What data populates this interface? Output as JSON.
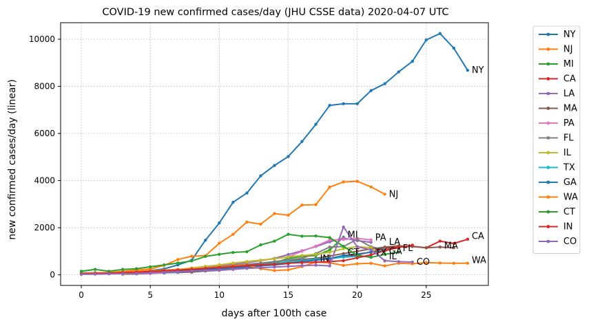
{
  "chart_data": {
    "type": "line",
    "title": "COVID-19 new confirmed cases/day (JHU CSSE data) 2020-04-07 UTC",
    "xlabel": "days after 100th case",
    "ylabel": "new confirmed cases/day (linear)",
    "xlim": [
      -1.5,
      29.5
    ],
    "ylim": [
      -450,
      10700
    ],
    "xticks": [
      0,
      5,
      10,
      15,
      20,
      25
    ],
    "yticks": [
      0,
      2000,
      4000,
      6000,
      8000,
      10000
    ],
    "grid": true,
    "legend_position": "outside-right",
    "series": [
      {
        "name": "NY",
        "color": "#1f77b4",
        "label": "NY",
        "x": [
          0,
          1,
          2,
          3,
          4,
          5,
          6,
          7,
          8,
          9,
          10,
          11,
          12,
          13,
          14,
          15,
          16,
          17,
          18,
          19,
          20,
          21,
          22,
          23,
          24,
          25,
          26,
          27,
          28
        ],
        "y": [
          80,
          90,
          60,
          110,
          130,
          180,
          250,
          420,
          620,
          1470,
          2200,
          3080,
          3470,
          4200,
          4640,
          5020,
          5660,
          6390,
          7190,
          7260,
          7260,
          7820,
          8110,
          8610,
          9060,
          9970,
          10240,
          9620,
          8680
        ]
      },
      {
        "name": "NJ",
        "color": "#ff7f0e",
        "label": "NJ",
        "x": [
          0,
          1,
          2,
          3,
          4,
          5,
          6,
          7,
          8,
          9,
          10,
          11,
          12,
          13,
          14,
          15,
          16,
          17,
          18,
          19,
          20,
          21,
          22
        ],
        "y": [
          60,
          80,
          100,
          150,
          200,
          250,
          400,
          650,
          790,
          810,
          1340,
          1720,
          2240,
          2150,
          2600,
          2530,
          2960,
          2980,
          3720,
          3940,
          3970,
          3730,
          3420
        ]
      },
      {
        "name": "MI",
        "color": "#2ca02c",
        "label": "MI",
        "x": [
          8,
          9,
          10,
          11,
          12,
          13,
          14,
          15,
          16,
          17,
          18,
          19
        ],
        "y": [
          110,
          170,
          230,
          300,
          350,
          420,
          510,
          700,
          780,
          820,
          1050,
          1600
        ]
      },
      {
        "name": "CA",
        "color": "#d62728",
        "label": "CA",
        "x": [
          0,
          1,
          2,
          3,
          4,
          5,
          6,
          7,
          8,
          9,
          10,
          11,
          12,
          13,
          14,
          15,
          16,
          17,
          18,
          19,
          20,
          21,
          22,
          23,
          24,
          25,
          26,
          27,
          28
        ],
        "y": [
          40,
          50,
          60,
          70,
          80,
          100,
          130,
          170,
          200,
          260,
          320,
          380,
          410,
          470,
          500,
          540,
          580,
          620,
          680,
          760,
          840,
          980,
          1130,
          1170,
          1210,
          1150,
          1430,
          1330,
          1510
        ]
      },
      {
        "name": "LA",
        "color": "#9467bd",
        "label": "LA",
        "x": [
          3,
          4,
          5,
          6,
          7,
          8,
          9,
          10,
          11,
          12,
          13,
          14,
          15,
          16,
          17,
          18,
          19,
          20,
          21
        ],
        "y": [
          20,
          40,
          80,
          150,
          220,
          280,
          300,
          380,
          450,
          520,
          600,
          700,
          860,
          1020,
          1200,
          1400,
          1560,
          1450,
          1380
        ]
      },
      {
        "name": "MA",
        "color": "#8c564b",
        "label": "MA",
        "x": [
          3,
          4,
          5,
          6,
          7,
          8,
          9,
          10,
          11,
          12,
          13,
          14,
          15,
          16,
          17,
          18,
          19,
          20,
          21,
          22,
          23,
          24,
          25,
          26,
          27
        ],
        "y": [
          30,
          40,
          60,
          80,
          100,
          120,
          160,
          190,
          240,
          300,
          380,
          480,
          580,
          650,
          700,
          800,
          900,
          1000,
          1100,
          1180,
          1230,
          1200,
          1150,
          1180,
          1150
        ]
      },
      {
        "name": "PA",
        "color": "#e377c2",
        "label": "PA",
        "x": [
          4,
          5,
          6,
          7,
          8,
          9,
          10,
          11,
          12,
          13,
          14,
          15,
          16,
          17,
          18,
          19,
          20,
          21
        ],
        "y": [
          40,
          60,
          80,
          120,
          200,
          340,
          420,
          480,
          560,
          620,
          680,
          760,
          1000,
          1220,
          1470,
          1500,
          1550,
          1480
        ]
      },
      {
        "name": "FL",
        "color": "#7f7f7f",
        "label": "FL",
        "x": [
          4,
          5,
          6,
          7,
          8,
          9,
          10,
          11,
          12,
          13,
          14,
          15,
          16,
          17,
          18,
          19,
          20,
          21,
          22,
          23
        ],
        "y": [
          50,
          80,
          110,
          150,
          200,
          260,
          320,
          400,
          450,
          500,
          560,
          640,
          700,
          900,
          1180,
          1200,
          1510,
          1190,
          1080,
          1130
        ]
      },
      {
        "name": "IL",
        "color": "#bcbd22",
        "label": "IL",
        "x": [
          3,
          4,
          5,
          6,
          7,
          8,
          9,
          10,
          11,
          12,
          13,
          14,
          15,
          16,
          17,
          18,
          19,
          20,
          21,
          22
        ],
        "y": [
          30,
          60,
          100,
          150,
          220,
          290,
          360,
          420,
          500,
          560,
          620,
          680,
          760,
          820,
          870,
          960,
          1110,
          1200,
          1150,
          580
        ]
      },
      {
        "name": "TX",
        "color": "#17becf",
        "label": "TX",
        "x": [
          6,
          7,
          8,
          9,
          10,
          11,
          12,
          13,
          14,
          15,
          16,
          17,
          18,
          19,
          20,
          21
        ],
        "y": [
          80,
          120,
          180,
          220,
          280,
          330,
          380,
          430,
          480,
          560,
          600,
          660,
          700,
          750,
          780,
          770
        ]
      },
      {
        "name": "GA",
        "color": "#1f77b4",
        "label": "GA",
        "x": [
          6,
          7,
          8,
          9,
          10,
          11,
          12,
          13,
          14,
          15,
          16,
          17,
          18,
          19,
          20,
          21,
          22
        ],
        "y": [
          90,
          140,
          200,
          230,
          260,
          300,
          340,
          380,
          420,
          480,
          560,
          620,
          690,
          820,
          880,
          960,
          1040
        ]
      },
      {
        "name": "WA",
        "color": "#ff7f0e",
        "label": "WA",
        "x": [
          3,
          4,
          5,
          6,
          7,
          8,
          9,
          10,
          11,
          12,
          13,
          14,
          15,
          16,
          17,
          18,
          19,
          20,
          21,
          22,
          23,
          24,
          25,
          26,
          27,
          28
        ],
        "y": [
          130,
          150,
          170,
          200,
          230,
          260,
          280,
          330,
          380,
          420,
          260,
          180,
          210,
          350,
          540,
          510,
          400,
          470,
          490,
          380,
          490,
          470,
          520,
          500,
          490,
          490
        ]
      },
      {
        "name": "CT",
        "color": "#2ca02c",
        "label": "CT",
        "x": [
          0,
          1,
          2,
          3,
          4,
          5,
          6,
          7,
          8,
          9,
          10,
          11,
          12,
          13,
          14,
          15,
          16,
          17,
          18,
          19,
          20,
          21,
          22,
          23
        ],
        "y": [
          150,
          230,
          150,
          230,
          260,
          340,
          420,
          500,
          590,
          780,
          870,
          950,
          980,
          1270,
          1430,
          1720,
          1640,
          1650,
          1580,
          1210,
          830,
          740,
          870,
          960
        ]
      },
      {
        "name": "IN",
        "color": "#d62728",
        "label": "IN",
        "x": [
          1,
          2,
          3,
          4,
          5,
          6,
          7,
          8,
          9,
          10,
          11,
          12,
          13,
          14,
          15,
          16,
          17,
          18,
          19,
          20,
          21,
          22,
          23,
          24
        ],
        "y": [
          60,
          70,
          90,
          110,
          140,
          170,
          200,
          230,
          270,
          310,
          350,
          390,
          420,
          450,
          490,
          520,
          540,
          560,
          600,
          720,
          850,
          1020,
          1160,
          1260
        ]
      },
      {
        "name": "CO",
        "color": "#9467bd",
        "label": "CO",
        "x": [
          0,
          1,
          2,
          3,
          4,
          5,
          6,
          7,
          8,
          9,
          10,
          11,
          12,
          13,
          14,
          15,
          16,
          17,
          18,
          19,
          20,
          21,
          22,
          23,
          24
        ],
        "y": [
          20,
          30,
          40,
          50,
          60,
          80,
          100,
          130,
          160,
          180,
          200,
          230,
          270,
          300,
          330,
          360,
          390,
          410,
          380,
          2030,
          1190,
          1060,
          600,
          560,
          540
        ]
      }
    ],
    "end_labels": [
      {
        "text": "NY",
        "x": 28.3,
        "y": 8680
      },
      {
        "text": "NJ",
        "x": 22.3,
        "y": 3420
      },
      {
        "text": "MI",
        "x": 19.3,
        "y": 1700
      },
      {
        "text": "CA",
        "x": 28.3,
        "y": 1630
      },
      {
        "text": "PA",
        "x": 21.3,
        "y": 1580
      },
      {
        "text": "LA",
        "x": 22.3,
        "y": 1390
      },
      {
        "text": "FL",
        "x": 23.3,
        "y": 1130
      },
      {
        "text": "MA",
        "x": 26.3,
        "y": 1230
      },
      {
        "text": "GA",
        "x": 22.3,
        "y": 990
      },
      {
        "text": "TX",
        "x": 21.3,
        "y": 930
      },
      {
        "text": "CT",
        "x": 19.3,
        "y": 950
      },
      {
        "text": "IL",
        "x": 22.3,
        "y": 770
      },
      {
        "text": "IN",
        "x": 17.3,
        "y": 690
      },
      {
        "text": "CO",
        "x": 24.3,
        "y": 540
      },
      {
        "text": "WA",
        "x": 28.3,
        "y": 620
      }
    ]
  }
}
